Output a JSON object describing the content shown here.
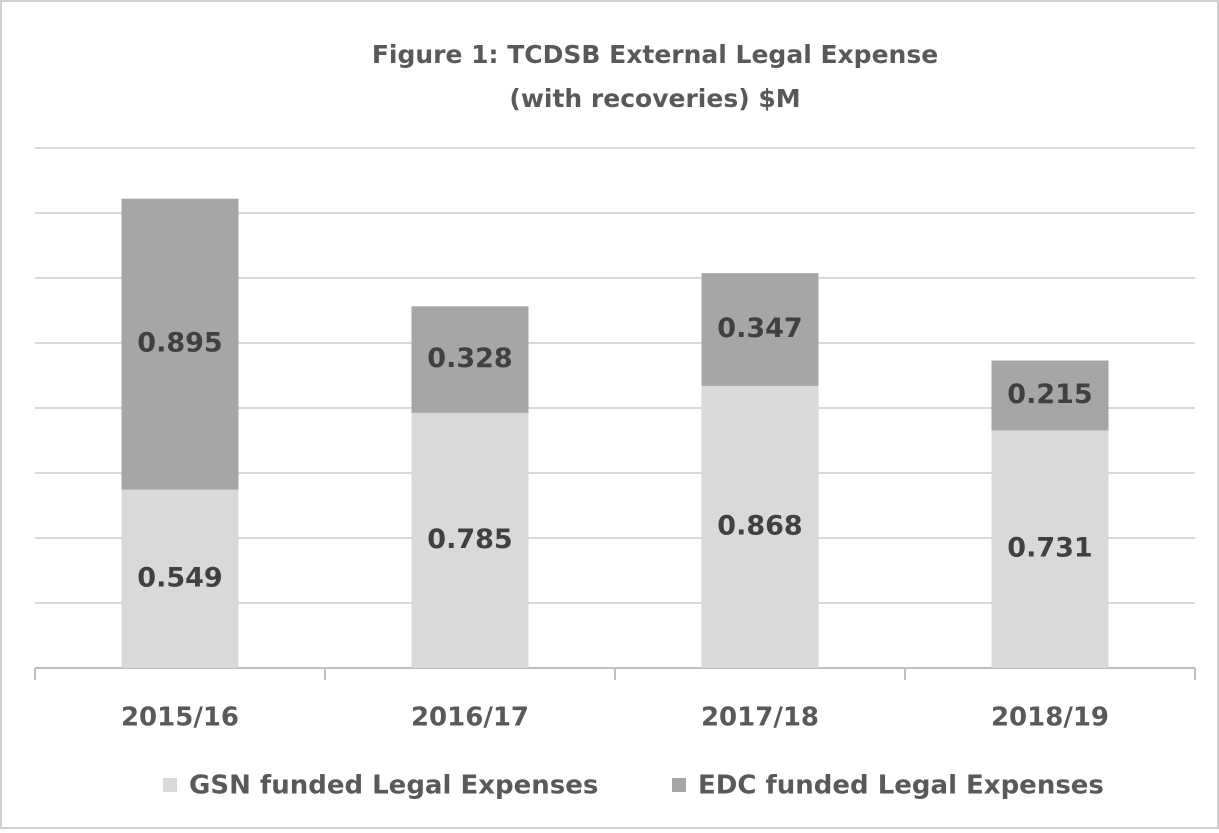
{
  "chart_data": {
    "type": "stacked_bar",
    "title": "Figure 1: TCDSB External Legal Expense",
    "subtitle": "(with recoveries) $M",
    "categories": [
      "2015/16",
      "2016/17",
      "2017/18",
      "2018/19"
    ],
    "series": [
      {
        "name": "GSN funded Legal Expenses",
        "color": "#d9d9d9",
        "values": [
          0.549,
          0.785,
          0.868,
          0.731
        ]
      },
      {
        "name": "EDC funded Legal Expenses",
        "color": "#a6a6a6",
        "values": [
          0.895,
          0.328,
          0.347,
          0.215
        ]
      }
    ],
    "ylim": [
      0,
      1.6
    ],
    "yticks": [
      0,
      0.2,
      0.4,
      0.6,
      0.8,
      1,
      1.2,
      1.4,
      1.6
    ],
    "grid": true,
    "legend": "bottom"
  }
}
